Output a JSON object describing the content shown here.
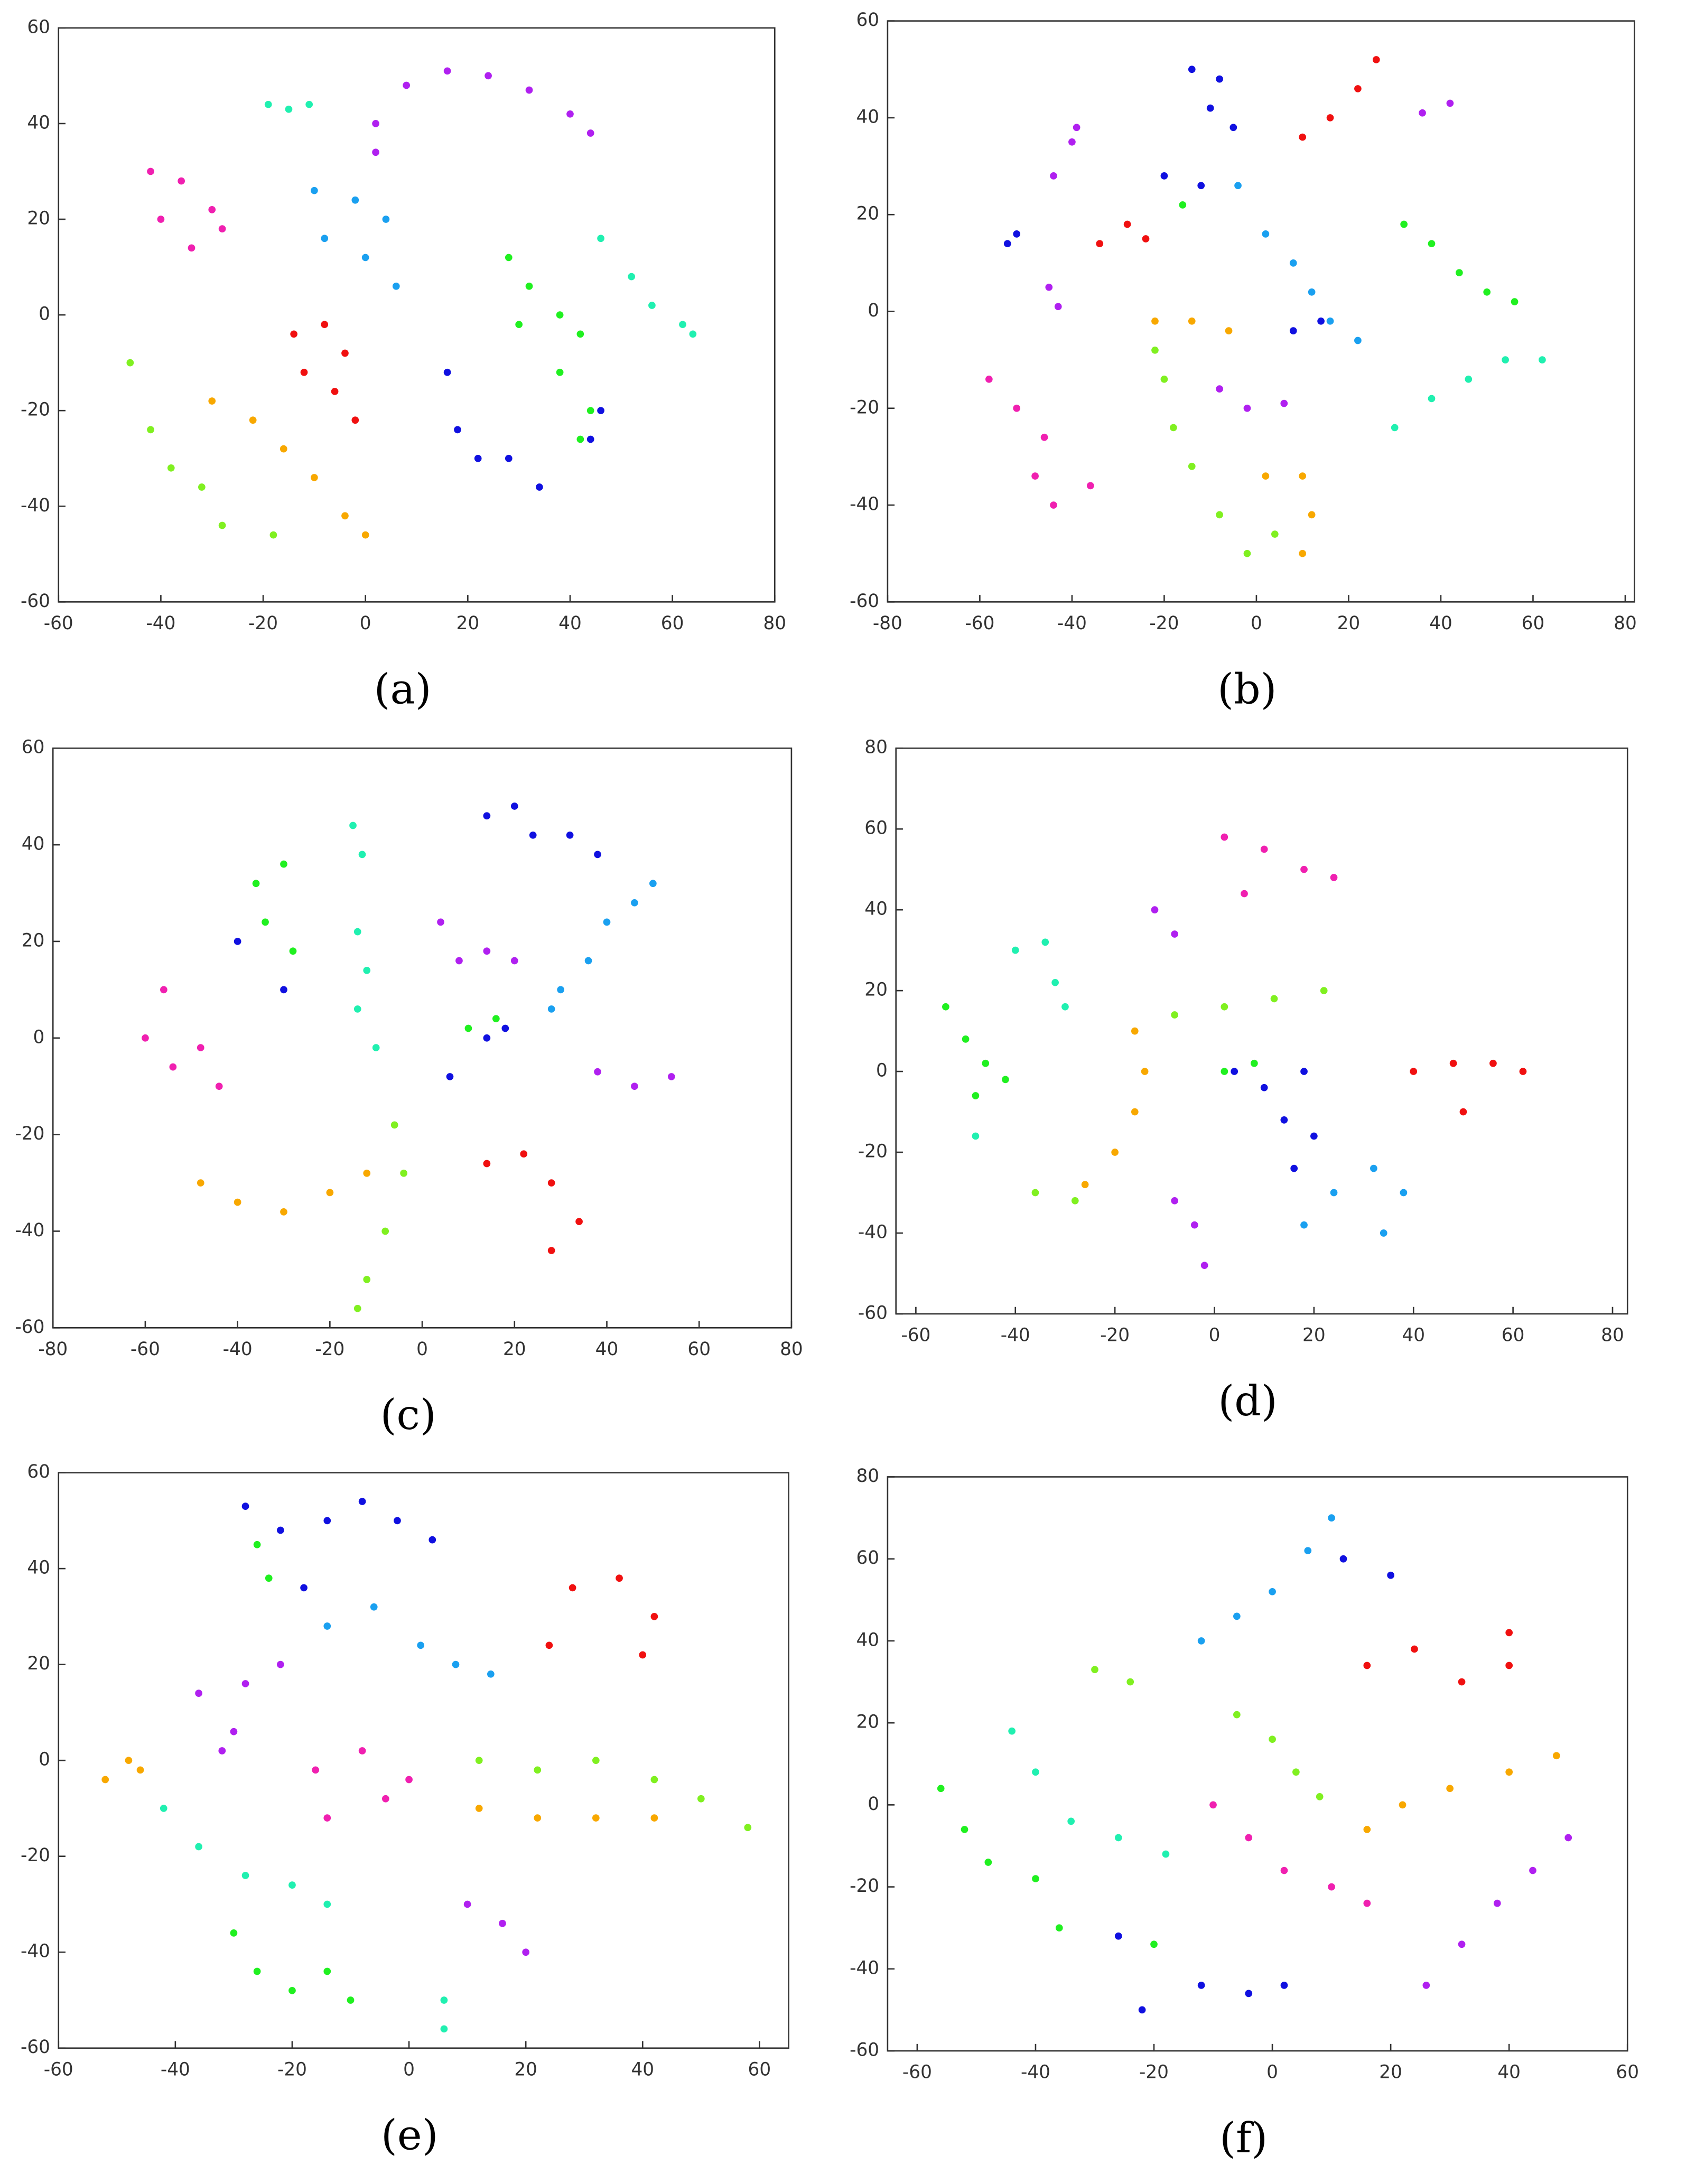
{
  "chart_data": [
    {
      "type": "scatter",
      "caption": "(a)",
      "xlim": [
        -60,
        80
      ],
      "ylim": [
        -60,
        60
      ],
      "xticks": [
        -60,
        -40,
        -20,
        0,
        20,
        40,
        60,
        80
      ],
      "yticks": [
        -60,
        -40,
        -20,
        0,
        20,
        40,
        60
      ],
      "series": [
        {
          "color": "#20f0b0",
          "x": [
            -19,
            -15,
            -11,
            46,
            52,
            56,
            62,
            64
          ],
          "y": [
            44,
            43,
            44,
            16,
            8,
            2,
            -2,
            -4
          ]
        },
        {
          "color": "#b020f0",
          "x": [
            2,
            8,
            16,
            24,
            32,
            40,
            44,
            2
          ],
          "y": [
            40,
            48,
            51,
            50,
            47,
            42,
            38,
            34
          ]
        },
        {
          "color": "#f020b0",
          "x": [
            -42,
            -36,
            -30,
            -40,
            -34,
            -28
          ],
          "y": [
            30,
            28,
            22,
            20,
            14,
            18
          ]
        },
        {
          "color": "#1aa0f0",
          "x": [
            -10,
            -2,
            4,
            -8,
            0,
            6
          ],
          "y": [
            26,
            24,
            20,
            16,
            12,
            6
          ]
        },
        {
          "color": "#f01010",
          "x": [
            -14,
            -8,
            -4,
            -12,
            -6,
            -2
          ],
          "y": [
            -4,
            -2,
            -8,
            -12,
            -16,
            -22
          ]
        },
        {
          "color": "#20f020",
          "x": [
            28,
            32,
            38,
            30,
            42,
            38,
            44,
            42
          ],
          "y": [
            12,
            6,
            0,
            -2,
            -4,
            -12,
            -20,
            -26
          ]
        },
        {
          "color": "#1010e0",
          "x": [
            16,
            18,
            22,
            28,
            34,
            44,
            46
          ],
          "y": [
            -12,
            -24,
            -30,
            -30,
            -36,
            -26,
            -20
          ]
        },
        {
          "color": "#80f020",
          "x": [
            -46,
            -42,
            -38,
            -32,
            -28,
            -18
          ],
          "y": [
            -10,
            -24,
            -32,
            -36,
            -44,
            -46
          ]
        },
        {
          "color": "#f8a800",
          "x": [
            -30,
            -22,
            -16,
            -10,
            -4,
            0
          ],
          "y": [
            -18,
            -22,
            -28,
            -34,
            -42,
            -46
          ]
        }
      ]
    },
    {
      "type": "scatter",
      "caption": "(b)",
      "xlim": [
        -80,
        82
      ],
      "ylim": [
        -60,
        60
      ],
      "xticks": [
        -80,
        -60,
        -40,
        -20,
        0,
        20,
        40,
        60,
        80
      ],
      "yticks": [
        -60,
        -40,
        -20,
        0,
        20,
        40,
        60
      ],
      "series": [
        {
          "color": "#1010e0",
          "x": [
            -14,
            -8,
            -10,
            -5,
            -54,
            -52,
            -20,
            -12,
            8,
            14
          ],
          "y": [
            50,
            48,
            42,
            38,
            14,
            16,
            28,
            26,
            -4,
            -2
          ]
        },
        {
          "color": "#f01010",
          "x": [
            10,
            16,
            22,
            26,
            -34,
            -28,
            -24
          ],
          "y": [
            36,
            40,
            46,
            52,
            14,
            18,
            15
          ]
        },
        {
          "color": "#b020f0",
          "x": [
            36,
            42,
            -44,
            -40,
            -39,
            -45,
            -43,
            -8,
            -2,
            6
          ],
          "y": [
            41,
            43,
            28,
            35,
            38,
            5,
            1,
            -16,
            -20,
            -19
          ]
        },
        {
          "color": "#20f020",
          "x": [
            -16,
            32,
            38,
            44,
            50,
            56
          ],
          "y": [
            22,
            18,
            14,
            8,
            4,
            2
          ]
        },
        {
          "color": "#1aa0f0",
          "x": [
            -4,
            2,
            8,
            12,
            16,
            22
          ],
          "y": [
            26,
            16,
            10,
            4,
            -2,
            -6
          ]
        },
        {
          "color": "#20f0b0",
          "x": [
            30,
            38,
            46,
            54,
            62
          ],
          "y": [
            -24,
            -18,
            -14,
            -10,
            -10
          ]
        },
        {
          "color": "#f8a800",
          "x": [
            -22,
            -14,
            -6,
            2,
            10,
            12,
            10
          ],
          "y": [
            -2,
            -2,
            -4,
            -34,
            -34,
            -42,
            -50
          ]
        },
        {
          "color": "#80f020",
          "x": [
            -22,
            -20,
            -18,
            -14,
            -8,
            -2,
            4
          ],
          "y": [
            -8,
            -14,
            -24,
            -32,
            -42,
            -50,
            -46
          ]
        },
        {
          "color": "#f020b0",
          "x": [
            -58,
            -52,
            -46,
            -48,
            -44,
            -36
          ],
          "y": [
            -14,
            -20,
            -26,
            -34,
            -40,
            -36
          ]
        }
      ]
    },
    {
      "type": "scatter",
      "caption": "(c)",
      "xlim": [
        -80,
        80
      ],
      "ylim": [
        -60,
        60
      ],
      "xticks": [
        -80,
        -60,
        -40,
        -20,
        0,
        20,
        40,
        60,
        80
      ],
      "yticks": [
        -60,
        -40,
        -20,
        0,
        20,
        40,
        60
      ],
      "series": [
        {
          "color": "#1010e0",
          "x": [
            14,
            20,
            24,
            32,
            38,
            -40,
            -30,
            6,
            14,
            18
          ],
          "y": [
            46,
            48,
            42,
            42,
            38,
            20,
            10,
            -8,
            0,
            2
          ]
        },
        {
          "color": "#20f0b0",
          "x": [
            -15,
            -13,
            -14,
            -12,
            -14,
            -10
          ],
          "y": [
            44,
            38,
            22,
            14,
            6,
            -2
          ]
        },
        {
          "color": "#20f020",
          "x": [
            -36,
            -30,
            -34,
            -28,
            10,
            16
          ],
          "y": [
            32,
            36,
            24,
            18,
            2,
            4
          ]
        },
        {
          "color": "#b020f0",
          "x": [
            4,
            8,
            14,
            20,
            38,
            46,
            54
          ],
          "y": [
            24,
            16,
            18,
            16,
            -7,
            -10,
            -8
          ]
        },
        {
          "color": "#1aa0f0",
          "x": [
            30,
            36,
            40,
            46,
            50,
            28
          ],
          "y": [
            10,
            16,
            24,
            28,
            32,
            6
          ]
        },
        {
          "color": "#f020b0",
          "x": [
            -56,
            -60,
            -54,
            -48,
            -44
          ],
          "y": [
            10,
            0,
            -6,
            -2,
            -10
          ]
        },
        {
          "color": "#f01010",
          "x": [
            14,
            22,
            28,
            34,
            28
          ],
          "y": [
            -26,
            -24,
            -30,
            -38,
            -44
          ]
        },
        {
          "color": "#f8a800",
          "x": [
            -48,
            -40,
            -30,
            -20,
            -12
          ],
          "y": [
            -30,
            -34,
            -36,
            -32,
            -28
          ]
        },
        {
          "color": "#80f020",
          "x": [
            -6,
            -4,
            -8,
            -12,
            -14
          ],
          "y": [
            -18,
            -28,
            -40,
            -50,
            -56
          ]
        }
      ]
    },
    {
      "type": "scatter",
      "caption": "(d)",
      "xlim": [
        -64,
        83
      ],
      "ylim": [
        -60,
        80
      ],
      "xticks": [
        -60,
        -40,
        -20,
        0,
        20,
        40,
        60,
        80
      ],
      "yticks": [
        -60,
        -40,
        -20,
        0,
        20,
        40,
        60,
        80
      ],
      "series": [
        {
          "color": "#f020b0",
          "x": [
            2,
            10,
            18,
            24,
            6
          ],
          "y": [
            58,
            55,
            50,
            48,
            44
          ]
        },
        {
          "color": "#b020f0",
          "x": [
            -12,
            -8,
            -8,
            -4,
            -2
          ],
          "y": [
            40,
            34,
            -32,
            -38,
            -48
          ]
        },
        {
          "color": "#20f0b0",
          "x": [
            -40,
            -34,
            -32,
            -30,
            -48
          ],
          "y": [
            30,
            32,
            22,
            16,
            -16
          ]
        },
        {
          "color": "#20f020",
          "x": [
            -54,
            -50,
            -46,
            -42,
            -48,
            2,
            8
          ],
          "y": [
            16,
            8,
            2,
            -2,
            -6,
            0,
            2
          ]
        },
        {
          "color": "#80f020",
          "x": [
            -8,
            2,
            12,
            22,
            -36,
            -28
          ],
          "y": [
            14,
            16,
            18,
            20,
            -30,
            -32
          ]
        },
        {
          "color": "#f8a800",
          "x": [
            -16,
            -14,
            -16,
            -20,
            -26
          ],
          "y": [
            10,
            0,
            -10,
            -20,
            -28
          ]
        },
        {
          "color": "#1010e0",
          "x": [
            4,
            10,
            18,
            14,
            20,
            16
          ],
          "y": [
            0,
            -4,
            0,
            -12,
            -16,
            -24
          ]
        },
        {
          "color": "#f01010",
          "x": [
            40,
            48,
            56,
            62,
            50
          ],
          "y": [
            0,
            2,
            2,
            0,
            -10
          ]
        },
        {
          "color": "#1aa0f0",
          "x": [
            18,
            24,
            32,
            38,
            34
          ],
          "y": [
            -38,
            -30,
            -24,
            -30,
            -40
          ]
        }
      ]
    },
    {
      "type": "scatter",
      "caption": "(e)",
      "xlim": [
        -60,
        65
      ],
      "ylim": [
        -60,
        60
      ],
      "xticks": [
        -60,
        -40,
        -20,
        0,
        20,
        40,
        60
      ],
      "yticks": [
        -60,
        -40,
        -20,
        0,
        20,
        40,
        60
      ],
      "series": [
        {
          "color": "#1010e0",
          "x": [
            -28,
            -22,
            -14,
            -8,
            -2,
            4,
            -18
          ],
          "y": [
            53,
            48,
            50,
            54,
            50,
            46,
            36
          ]
        },
        {
          "color": "#20f020",
          "x": [
            -26,
            -24,
            -30,
            -26,
            -20,
            -14,
            -10
          ],
          "y": [
            45,
            38,
            -36,
            -44,
            -48,
            -44,
            -50
          ]
        },
        {
          "color": "#1aa0f0",
          "x": [
            -14,
            -6,
            2,
            8,
            14
          ],
          "y": [
            28,
            32,
            24,
            20,
            18
          ]
        },
        {
          "color": "#f01010",
          "x": [
            24,
            28,
            36,
            42,
            40
          ],
          "y": [
            24,
            36,
            38,
            30,
            22
          ]
        },
        {
          "color": "#b020f0",
          "x": [
            -36,
            -30,
            -28,
            -22,
            -32,
            10,
            16,
            20
          ],
          "y": [
            14,
            6,
            16,
            20,
            2,
            -30,
            -34,
            -40
          ]
        },
        {
          "color": "#f8a800",
          "x": [
            -52,
            -48,
            -46,
            12,
            22,
            32,
            42
          ],
          "y": [
            -4,
            0,
            -2,
            -10,
            -12,
            -12,
            -12
          ]
        },
        {
          "color": "#f020b0",
          "x": [
            -16,
            -8,
            -4,
            0,
            -14
          ],
          "y": [
            -2,
            2,
            -8,
            -4,
            -12
          ]
        },
        {
          "color": "#80f020",
          "x": [
            12,
            22,
            32,
            42,
            50,
            58
          ],
          "y": [
            0,
            -2,
            0,
            -4,
            -8,
            -14
          ]
        },
        {
          "color": "#20f0b0",
          "x": [
            -42,
            -36,
            -28,
            -20,
            -14,
            6,
            6
          ],
          "y": [
            -10,
            -18,
            -24,
            -26,
            -30,
            -50,
            -56
          ]
        }
      ]
    },
    {
      "type": "scatter",
      "caption": "(f)",
      "xlim": [
        -65,
        60
      ],
      "ylim": [
        -60,
        80
      ],
      "xticks": [
        -60,
        -40,
        -20,
        0,
        20,
        40,
        60
      ],
      "yticks": [
        -60,
        -40,
        -20,
        0,
        20,
        40,
        60,
        80
      ],
      "series": [
        {
          "color": "#1aa0f0",
          "x": [
            -12,
            -6,
            0,
            6,
            10
          ],
          "y": [
            40,
            46,
            52,
            62,
            70
          ]
        },
        {
          "color": "#1010e0",
          "x": [
            12,
            20,
            -22,
            -12,
            -4,
            2,
            -26
          ],
          "y": [
            60,
            56,
            -50,
            -44,
            -46,
            -44,
            -32
          ]
        },
        {
          "color": "#f01010",
          "x": [
            16,
            24,
            32,
            40,
            40
          ],
          "y": [
            34,
            38,
            30,
            34,
            42
          ]
        },
        {
          "color": "#80f020",
          "x": [
            -30,
            -24,
            -6,
            0,
            4,
            8
          ],
          "y": [
            33,
            30,
            22,
            16,
            8,
            2
          ]
        },
        {
          "color": "#f8a800",
          "x": [
            16,
            22,
            30,
            40,
            48
          ],
          "y": [
            -6,
            0,
            4,
            8,
            12
          ]
        },
        {
          "color": "#20f0b0",
          "x": [
            -44,
            -40,
            -34,
            -26,
            -18
          ],
          "y": [
            18,
            8,
            -4,
            -8,
            -12
          ]
        },
        {
          "color": "#20f020",
          "x": [
            -56,
            -52,
            -48,
            -40,
            -36,
            -20
          ],
          "y": [
            4,
            -6,
            -14,
            -18,
            -30,
            -34
          ]
        },
        {
          "color": "#f020b0",
          "x": [
            -10,
            -4,
            2,
            10,
            16
          ],
          "y": [
            0,
            -8,
            -16,
            -20,
            -24
          ]
        },
        {
          "color": "#b020f0",
          "x": [
            26,
            32,
            38,
            44,
            50
          ],
          "y": [
            -44,
            -34,
            -24,
            -16,
            -8
          ]
        }
      ]
    }
  ]
}
